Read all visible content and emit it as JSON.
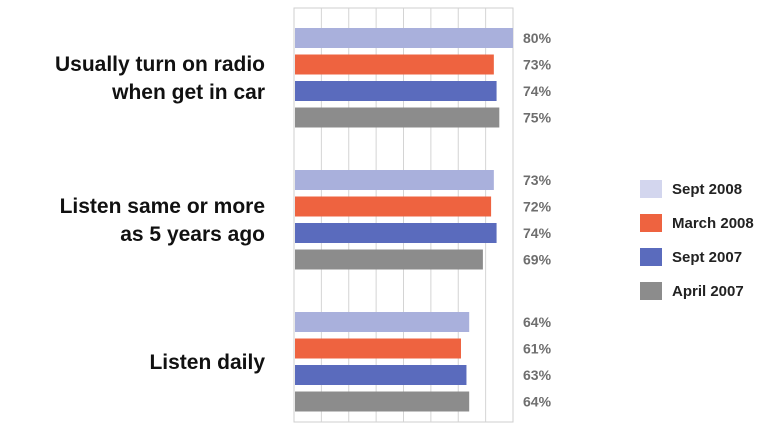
{
  "chart_data": {
    "type": "bar",
    "orientation": "horizontal",
    "categories": [
      [
        "Usually turn on radio",
        "when get in car"
      ],
      [
        "Listen same or more",
        "as 5 years ago"
      ],
      [
        "Listen daily"
      ]
    ],
    "series": [
      {
        "name": "Sept 2008",
        "color": "#a9b0dc",
        "legend_color": "#d3d6ee",
        "values": [
          80,
          73,
          64
        ],
        "labels": [
          "80%",
          "73%",
          "64%"
        ]
      },
      {
        "name": "March 2008",
        "color": "#ee6340",
        "legend_color": "#ee6340",
        "values": [
          73,
          72,
          61
        ],
        "labels": [
          "73%",
          "72%",
          "61%"
        ]
      },
      {
        "name": "Sept 2007",
        "color": "#5a6bbd",
        "legend_color": "#5a6bbd",
        "values": [
          74,
          74,
          63
        ],
        "labels": [
          "74%",
          "74%",
          "63%"
        ]
      },
      {
        "name": "April 2007",
        "color": "#8c8c8c",
        "legend_color": "#8c8c8c",
        "values": [
          75,
          69,
          64
        ],
        "labels": [
          "75%",
          "69%",
          "64%"
        ]
      }
    ],
    "xlim": [
      0,
      80
    ],
    "grid": true,
    "legend_position": "right",
    "title": "",
    "xlabel": "",
    "ylabel": ""
  }
}
